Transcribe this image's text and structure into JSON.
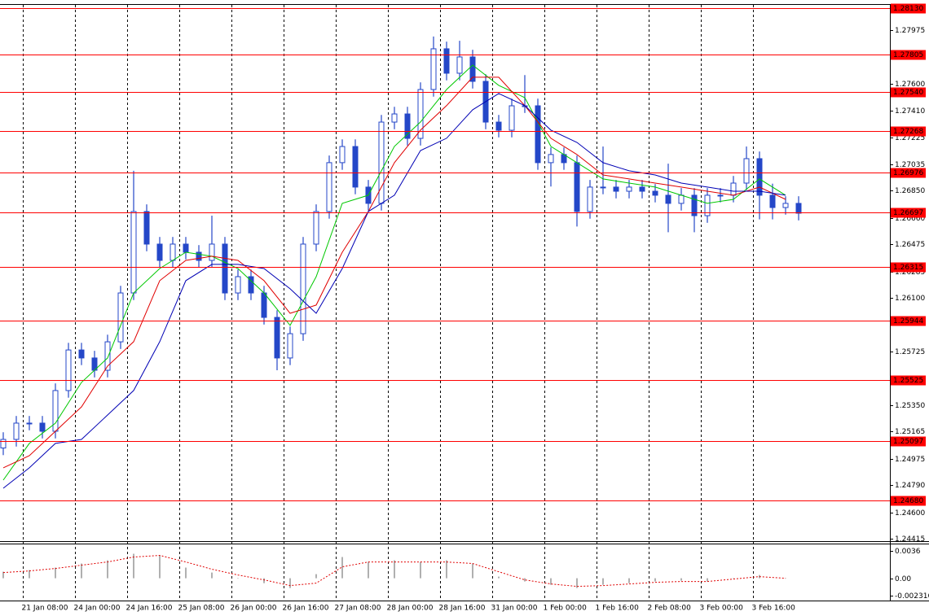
{
  "chart_data": [
    {
      "type": "candlestick",
      "color": "#2447c8",
      "open": [
        1.2505,
        1.2511,
        1.25224,
        1.25224,
        1.25167,
        1.25452,
        1.25736,
        1.2568,
        1.25594,
        1.25793,
        1.26135,
        1.26705,
        1.26477,
        1.26363,
        1.26477,
        1.2642,
        1.26363,
        1.26477,
        1.26135,
        1.26249,
        1.26135,
        1.25964,
        1.2568,
        1.2585,
        1.26477,
        1.26705,
        1.27047,
        1.2716,
        1.26876,
        1.26762,
        1.27331,
        1.27388,
        1.27217,
        1.27559,
        1.27844,
        1.27673,
        1.27787,
        1.27616,
        1.27331,
        1.27274,
        1.27445,
        1.27445,
        1.27047,
        1.27104,
        1.27047,
        1.26705,
        1.26876,
        1.26876,
        1.26847,
        1.26876,
        1.26847,
        1.26819,
        1.26762,
        1.26819,
        1.26676,
        1.26819,
        1.26819,
        1.26904,
        1.27075,
        1.26819,
        1.26733,
        1.26762
      ],
      "high": [
        1.2516,
        1.25274,
        1.25274,
        1.25274,
        1.25502,
        1.25786,
        1.25786,
        1.2573,
        1.25843,
        1.26185,
        1.2699,
        1.26755,
        1.26527,
        1.26527,
        1.26527,
        1.2647,
        1.26676,
        1.26527,
        1.26299,
        1.26299,
        1.26185,
        1.26014,
        1.259,
        1.26527,
        1.26755,
        1.27097,
        1.2721,
        1.2721,
        1.26926,
        1.27381,
        1.27438,
        1.27438,
        1.27609,
        1.2793,
        1.27894,
        1.279,
        1.27837,
        1.27666,
        1.27381,
        1.27495,
        1.2766,
        1.27495,
        1.27154,
        1.27154,
        1.27097,
        1.26926,
        1.2716,
        1.26926,
        1.26926,
        1.26926,
        1.26897,
        1.2704,
        1.26869,
        1.26869,
        1.26869,
        1.26869,
        1.26954,
        1.2716,
        1.27125,
        1.269,
        1.26812,
        1.26812
      ],
      "low": [
        1.25,
        1.2506,
        1.25174,
        1.25117,
        1.25117,
        1.25402,
        1.2563,
        1.25544,
        1.25544,
        1.25743,
        1.26085,
        1.26427,
        1.26313,
        1.26313,
        1.2637,
        1.26313,
        1.26313,
        1.26085,
        1.26085,
        1.26085,
        1.25914,
        1.25594,
        1.2563,
        1.258,
        1.26427,
        1.26655,
        1.26997,
        1.26826,
        1.26712,
        1.26712,
        1.27281,
        1.27167,
        1.27167,
        1.27509,
        1.27623,
        1.27623,
        1.27566,
        1.27281,
        1.27224,
        1.27224,
        1.27395,
        1.26997,
        1.2688,
        1.26997,
        1.266,
        1.26655,
        1.26826,
        1.26797,
        1.26797,
        1.26797,
        1.26769,
        1.2656,
        1.26712,
        1.2656,
        1.26626,
        1.26769,
        1.26769,
        1.26854,
        1.2665,
        1.2665,
        1.26683,
        1.26643
      ],
      "close": [
        1.2511,
        1.25224,
        1.25224,
        1.25167,
        1.25452,
        1.25736,
        1.2568,
        1.25594,
        1.25793,
        1.26135,
        1.26705,
        1.26477,
        1.26363,
        1.26477,
        1.2642,
        1.26363,
        1.26477,
        1.26135,
        1.26249,
        1.26135,
        1.25964,
        1.2568,
        1.2585,
        1.26477,
        1.26705,
        1.27047,
        1.2716,
        1.26876,
        1.26762,
        1.27331,
        1.27388,
        1.27217,
        1.27559,
        1.27844,
        1.27673,
        1.27787,
        1.27616,
        1.27331,
        1.27274,
        1.27445,
        1.27445,
        1.27047,
        1.27104,
        1.27047,
        1.26705,
        1.26876,
        1.26876,
        1.26847,
        1.26876,
        1.26847,
        1.26819,
        1.26762,
        1.26819,
        1.26676,
        1.26819,
        1.26819,
        1.26904,
        1.27075,
        1.26819,
        1.26733,
        1.26762,
        1.26693
      ],
      "moving_averages": [
        {
          "color": "#00c800",
          "x": [
            0,
            2,
            4,
            6,
            8,
            10,
            12,
            14,
            16,
            18,
            20,
            22,
            24,
            26,
            28,
            30,
            32,
            34,
            36,
            38,
            40,
            42,
            44,
            46,
            48,
            50,
            52,
            54,
            56,
            58,
            60
          ],
          "values": [
            1.24825,
            1.25082,
            1.25224,
            1.25509,
            1.2568,
            1.26135,
            1.26306,
            1.2642,
            1.26392,
            1.26306,
            1.26135,
            1.25908,
            1.26249,
            1.26762,
            1.26819,
            1.27161,
            1.27332,
            1.27559,
            1.2773,
            1.27588,
            1.27502,
            1.27161,
            1.27047,
            1.26933,
            1.26904,
            1.26876,
            1.26819,
            1.26762,
            1.2679,
            1.26933,
            1.26819
          ]
        },
        {
          "color": "#e00000",
          "x": [
            0,
            2,
            4,
            6,
            8,
            10,
            12,
            14,
            16,
            18,
            20,
            22,
            24,
            26,
            28,
            30,
            32,
            34,
            36,
            38,
            40,
            42,
            44,
            46,
            48,
            50,
            52,
            54,
            56,
            58,
            60
          ],
          "values": [
            1.24911,
            1.24996,
            1.25167,
            1.25338,
            1.25623,
            1.25794,
            1.26221,
            1.26363,
            1.26392,
            1.26363,
            1.26221,
            1.25993,
            1.2605,
            1.2642,
            1.26705,
            1.27047,
            1.27275,
            1.27446,
            1.27645,
            1.27645,
            1.27446,
            1.27218,
            1.27104,
            1.26961,
            1.26933,
            1.26904,
            1.26876,
            1.26847,
            1.26819,
            1.26876,
            1.2679
          ]
        },
        {
          "color": "#0000b4",
          "x": [
            0,
            2,
            4,
            6,
            8,
            10,
            12,
            14,
            16,
            18,
            20,
            22,
            24,
            26,
            28,
            30,
            32,
            34,
            36,
            38,
            40,
            42,
            44,
            46,
            48,
            50,
            52,
            54,
            56,
            58,
            60
          ],
          "values": [
            1.24768,
            1.24911,
            1.25082,
            1.2511,
            1.25281,
            1.25452,
            1.25794,
            1.26221,
            1.26335,
            1.26335,
            1.26306,
            1.26164,
            1.25993,
            1.26306,
            1.26705,
            1.26819,
            1.27132,
            1.27218,
            1.27417,
            1.27531,
            1.27446,
            1.27275,
            1.27189,
            1.27047,
            1.2699,
            1.26961,
            1.26904,
            1.26876,
            1.26847,
            1.26847,
            1.26819
          ]
        }
      ],
      "levels": [
        {
          "value": 1.2813,
          "label": "1.28130"
        },
        {
          "value": 1.27805,
          "label": "1.27805"
        },
        {
          "value": 1.2754,
          "label": "1.27540"
        },
        {
          "value": 1.27268,
          "label": "1.27268"
        },
        {
          "value": 1.26976,
          "label": "1.26976"
        },
        {
          "value": 1.26697,
          "label": "1.26697"
        },
        {
          "value": 1.26315,
          "label": "1.26315"
        },
        {
          "value": 1.25944,
          "label": "1.25944"
        },
        {
          "value": 1.25525,
          "label": "1.25525"
        },
        {
          "value": 1.25097,
          "label": "1.25097"
        },
        {
          "value": 1.2468,
          "label": "1.24680"
        }
      ],
      "level_color": "#ff0000",
      "xlim": [
        -0.25,
        68
      ],
      "xticks": [
        {
          "value": 1.5,
          "label": "21 Jan 08:00"
        },
        {
          "value": 5.5,
          "label": "24 Jan 00:00"
        },
        {
          "value": 9.5,
          "label": "24 Jan 16:00"
        },
        {
          "value": 13.5,
          "label": "25 Jan 08:00"
        },
        {
          "value": 17.5,
          "label": "26 Jan 00:00"
        },
        {
          "value": 21.5,
          "label": "26 Jan 16:00"
        },
        {
          "value": 25.5,
          "label": "27 Jan 08:00"
        },
        {
          "value": 29.5,
          "label": "28 Jan 00:00"
        },
        {
          "value": 33.5,
          "label": "28 Jan 16:00"
        },
        {
          "value": 37.5,
          "label": "31 Jan 00:00"
        },
        {
          "value": 41.5,
          "label": "1 Feb 00:00"
        },
        {
          "value": 45.5,
          "label": "1 Feb 16:00"
        },
        {
          "value": 49.5,
          "label": "2 Feb 08:00"
        },
        {
          "value": 53.5,
          "label": "3 Feb 00:00"
        },
        {
          "value": 57.5,
          "label": "3 Feb 16:00"
        }
      ],
      "ylim": [
        1.24398,
        1.28157
      ],
      "yticks": [
        1.27975,
        {
          "value": 1.276,
          "label": "1.27600"
        },
        {
          "value": 1.2741,
          "label": "1.27410"
        },
        1.27225,
        1.27035,
        {
          "value": 1.2685,
          "label": "1.26850"
        },
        {
          "value": 1.2666,
          "label": "1.26660"
        },
        1.26475,
        1.26285,
        {
          "value": 1.261,
          "label": "1.26100"
        },
        1.25725,
        {
          "value": 1.2535,
          "label": "1.25350"
        },
        1.25165,
        1.24975,
        {
          "value": 1.2479,
          "label": "1.24790"
        },
        {
          "value": 1.246,
          "label": "1.24600"
        },
        1.24415
      ],
      "grid": true
    },
    {
      "type": "oscillator",
      "x": [
        0,
        2,
        4,
        6,
        8,
        10,
        12,
        14,
        16,
        18,
        20,
        22,
        24,
        26,
        28,
        30,
        32,
        34,
        36,
        38,
        40,
        42,
        44,
        46,
        48,
        50,
        52,
        54,
        56,
        58,
        60
      ],
      "histogram": [
        0.00085,
        0.00106,
        0.00138,
        0.00191,
        0.00233,
        0.00318,
        0.00297,
        0.00138,
        0.00074,
        0,
        -0.00064,
        -0.00127,
        0.00053,
        0.00276,
        0.00212,
        0.00233,
        0.00212,
        0.00233,
        0.00191,
        0.00021,
        -0.00042,
        -0.00085,
        -0.00127,
        -0.00085,
        -0.00064,
        -0.00042,
        -0.00032,
        -0.00042,
        0,
        0.00042,
        0
      ],
      "histogram_color": "#b0b0b0",
      "signal": [
        0.00074,
        0.00095,
        0.00127,
        0.0017,
        0.00212,
        0.00276,
        0.00297,
        0.00212,
        0.00117,
        0.00042,
        -0.00021,
        -0.00095,
        -0.00064,
        0.00148,
        0.00212,
        0.00212,
        0.00212,
        0.00212,
        0.00191,
        0.00085,
        -0.00021,
        -0.00074,
        -0.00106,
        -0.00095,
        -0.00074,
        -0.00053,
        -0.00042,
        -0.00042,
        -0.00011,
        0.00021,
        0
      ],
      "signal_color": "#e00000",
      "xlim": [
        -0.25,
        68
      ],
      "ylim": [
        -0.0029,
        0.0044
      ],
      "yticks": [
        0.0036,
        {
          "value": 0,
          "label": "0.00"
        },
        -0.002316
      ]
    }
  ]
}
